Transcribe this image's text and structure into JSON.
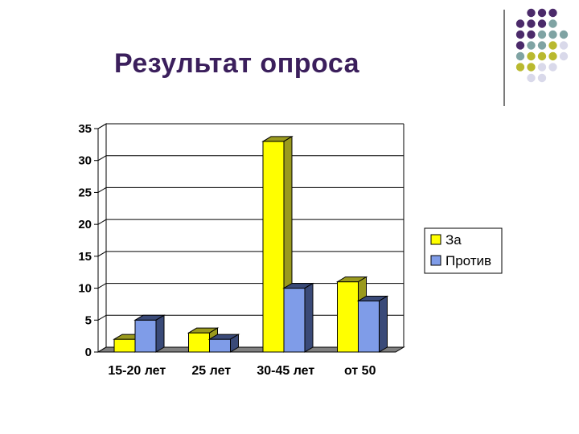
{
  "slide": {
    "title": "Результат опроса"
  },
  "decoration": {
    "dot_colors": {
      "purple": "#4b2a6a",
      "teal": "#7fa3a3",
      "olive": "#b9b92f",
      "lavender": "#d9d9ea"
    }
  },
  "chart_data": {
    "type": "bar",
    "style": "3d-clustered-column",
    "categories": [
      "15-20 лет",
      "25 лет",
      "30-45 лет",
      "от 50"
    ],
    "series": [
      {
        "name": "За",
        "values": [
          2,
          3,
          33,
          11
        ],
        "color": "#ffff00",
        "side_color": "#9a9a1e"
      },
      {
        "name": "Против",
        "values": [
          5,
          2,
          10,
          8
        ],
        "color": "#7f9ce8",
        "side_color": "#3a4a78"
      }
    ],
    "yticks": [
      "0",
      "5",
      "10",
      "15",
      "20",
      "25",
      "30",
      "35"
    ],
    "ylim": [
      0,
      35
    ],
    "grid": true,
    "legend": "right",
    "floor_color": "#808080"
  }
}
